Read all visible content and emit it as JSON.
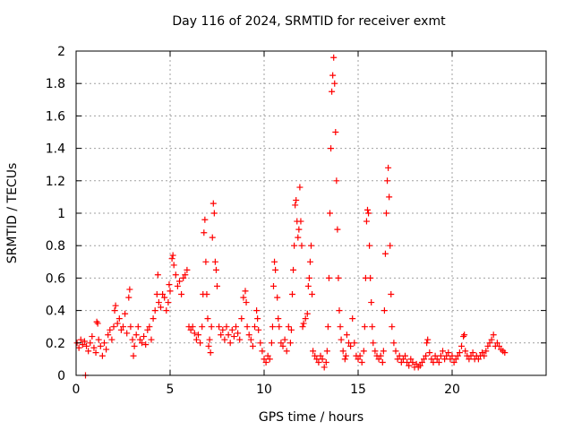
{
  "chart_data": {
    "type": "scatter",
    "title": "Day 116 of 2024, SRMTID for receiver exmt",
    "xlabel": "GPS time / hours",
    "ylabel": "SRMTID / TECUs",
    "xlim": [
      0,
      25
    ],
    "ylim": [
      0,
      2
    ],
    "xticks": [
      "0",
      "5",
      "10",
      "15",
      "20"
    ],
    "xtick_values": [
      0,
      5,
      10,
      15,
      20
    ],
    "yticks": [
      "0",
      "0.2",
      "0.4",
      "0.6",
      "0.8",
      "1",
      "1.2",
      "1.4",
      "1.6",
      "1.8",
      "2"
    ],
    "ytick_values": [
      0,
      0.2,
      0.4,
      0.6,
      0.8,
      1.0,
      1.2,
      1.4,
      1.6,
      1.8,
      2.0
    ],
    "grid": true,
    "marker": "plus",
    "marker_color": "#ff0000",
    "series": [
      {
        "name": "SRMTID",
        "points": [
          [
            0.05,
            0.2
          ],
          [
            0.15,
            0.17
          ],
          [
            0.25,
            0.22
          ],
          [
            0.35,
            0.19
          ],
          [
            0.45,
            0.21
          ],
          [
            0.55,
            0.18
          ],
          [
            0.5,
            0.0
          ],
          [
            0.65,
            0.15
          ],
          [
            0.75,
            0.2
          ],
          [
            0.85,
            0.24
          ],
          [
            0.95,
            0.17
          ],
          [
            1.05,
            0.14
          ],
          [
            1.1,
            0.33
          ],
          [
            1.15,
            0.32
          ],
          [
            1.2,
            0.22
          ],
          [
            1.3,
            0.18
          ],
          [
            1.4,
            0.12
          ],
          [
            1.5,
            0.2
          ],
          [
            1.6,
            0.16
          ],
          [
            1.7,
            0.25
          ],
          [
            1.8,
            0.28
          ],
          [
            1.9,
            0.22
          ],
          [
            2.0,
            0.3
          ],
          [
            2.05,
            0.4
          ],
          [
            2.1,
            0.43
          ],
          [
            2.2,
            0.32
          ],
          [
            2.3,
            0.35
          ],
          [
            2.4,
            0.28
          ],
          [
            2.5,
            0.3
          ],
          [
            2.6,
            0.38
          ],
          [
            2.7,
            0.26
          ],
          [
            2.8,
            0.48
          ],
          [
            2.85,
            0.53
          ],
          [
            2.9,
            0.3
          ],
          [
            3.0,
            0.22
          ],
          [
            3.05,
            0.12
          ],
          [
            3.1,
            0.18
          ],
          [
            3.2,
            0.25
          ],
          [
            3.3,
            0.3
          ],
          [
            3.4,
            0.22
          ],
          [
            3.5,
            0.2
          ],
          [
            3.6,
            0.24
          ],
          [
            3.7,
            0.19
          ],
          [
            3.8,
            0.28
          ],
          [
            3.9,
            0.3
          ],
          [
            4.0,
            0.22
          ],
          [
            4.1,
            0.35
          ],
          [
            4.2,
            0.4
          ],
          [
            4.3,
            0.5
          ],
          [
            4.35,
            0.62
          ],
          [
            4.4,
            0.45
          ],
          [
            4.5,
            0.42
          ],
          [
            4.6,
            0.5
          ],
          [
            4.7,
            0.48
          ],
          [
            4.8,
            0.4
          ],
          [
            4.9,
            0.45
          ],
          [
            4.95,
            0.56
          ],
          [
            5.0,
            0.52
          ],
          [
            5.1,
            0.72
          ],
          [
            5.15,
            0.74
          ],
          [
            5.2,
            0.68
          ],
          [
            5.3,
            0.62
          ],
          [
            5.4,
            0.55
          ],
          [
            5.5,
            0.58
          ],
          [
            5.6,
            0.5
          ],
          [
            5.7,
            0.6
          ],
          [
            5.8,
            0.62
          ],
          [
            5.9,
            0.65
          ],
          [
            6.0,
            0.3
          ],
          [
            6.1,
            0.28
          ],
          [
            6.2,
            0.3
          ],
          [
            6.3,
            0.26
          ],
          [
            6.4,
            0.22
          ],
          [
            6.5,
            0.25
          ],
          [
            6.6,
            0.2
          ],
          [
            6.7,
            0.3
          ],
          [
            6.75,
            0.5
          ],
          [
            6.8,
            0.88
          ],
          [
            6.85,
            0.96
          ],
          [
            6.9,
            0.7
          ],
          [
            6.95,
            0.5
          ],
          [
            7.0,
            0.35
          ],
          [
            7.05,
            0.18
          ],
          [
            7.1,
            0.22
          ],
          [
            7.15,
            0.14
          ],
          [
            7.2,
            0.3
          ],
          [
            7.25,
            0.85
          ],
          [
            7.3,
            1.06
          ],
          [
            7.35,
            1.0
          ],
          [
            7.4,
            0.7
          ],
          [
            7.45,
            0.65
          ],
          [
            7.5,
            0.55
          ],
          [
            7.6,
            0.3
          ],
          [
            7.7,
            0.25
          ],
          [
            7.8,
            0.28
          ],
          [
            7.9,
            0.22
          ],
          [
            8.0,
            0.3
          ],
          [
            8.1,
            0.25
          ],
          [
            8.2,
            0.2
          ],
          [
            8.3,
            0.28
          ],
          [
            8.4,
            0.24
          ],
          [
            8.5,
            0.3
          ],
          [
            8.6,
            0.26
          ],
          [
            8.7,
            0.22
          ],
          [
            8.8,
            0.35
          ],
          [
            8.9,
            0.48
          ],
          [
            9.0,
            0.52
          ],
          [
            9.05,
            0.45
          ],
          [
            9.1,
            0.3
          ],
          [
            9.2,
            0.25
          ],
          [
            9.3,
            0.22
          ],
          [
            9.4,
            0.18
          ],
          [
            9.5,
            0.3
          ],
          [
            9.6,
            0.4
          ],
          [
            9.65,
            0.35
          ],
          [
            9.7,
            0.28
          ],
          [
            9.8,
            0.2
          ],
          [
            9.9,
            0.15
          ],
          [
            10.0,
            0.1
          ],
          [
            10.1,
            0.08
          ],
          [
            10.2,
            0.12
          ],
          [
            10.3,
            0.1
          ],
          [
            10.4,
            0.2
          ],
          [
            10.45,
            0.3
          ],
          [
            10.5,
            0.55
          ],
          [
            10.55,
            0.7
          ],
          [
            10.6,
            0.65
          ],
          [
            10.7,
            0.48
          ],
          [
            10.75,
            0.35
          ],
          [
            10.8,
            0.3
          ],
          [
            10.9,
            0.2
          ],
          [
            11.0,
            0.18
          ],
          [
            11.1,
            0.22
          ],
          [
            11.2,
            0.15
          ],
          [
            11.3,
            0.3
          ],
          [
            11.4,
            0.2
          ],
          [
            11.45,
            0.28
          ],
          [
            11.5,
            0.5
          ],
          [
            11.55,
            0.65
          ],
          [
            11.6,
            0.8
          ],
          [
            11.65,
            1.05
          ],
          [
            11.7,
            1.08
          ],
          [
            11.75,
            0.95
          ],
          [
            11.8,
            0.85
          ],
          [
            11.85,
            0.9
          ],
          [
            11.9,
            1.16
          ],
          [
            11.95,
            0.95
          ],
          [
            12.0,
            0.8
          ],
          [
            12.05,
            0.3
          ],
          [
            12.1,
            0.32
          ],
          [
            12.2,
            0.35
          ],
          [
            12.3,
            0.38
          ],
          [
            12.35,
            0.55
          ],
          [
            12.4,
            0.6
          ],
          [
            12.45,
            0.7
          ],
          [
            12.5,
            0.8
          ],
          [
            12.55,
            0.5
          ],
          [
            12.6,
            0.15
          ],
          [
            12.7,
            0.12
          ],
          [
            12.8,
            0.1
          ],
          [
            12.9,
            0.08
          ],
          [
            13.0,
            0.12
          ],
          [
            13.1,
            0.1
          ],
          [
            13.2,
            0.05
          ],
          [
            13.3,
            0.08
          ],
          [
            13.35,
            0.15
          ],
          [
            13.4,
            0.3
          ],
          [
            13.45,
            0.6
          ],
          [
            13.5,
            1.0
          ],
          [
            13.55,
            1.4
          ],
          [
            13.6,
            1.75
          ],
          [
            13.65,
            1.85
          ],
          [
            13.7,
            1.96
          ],
          [
            13.75,
            1.8
          ],
          [
            13.8,
            1.5
          ],
          [
            13.85,
            1.2
          ],
          [
            13.9,
            0.9
          ],
          [
            13.95,
            0.6
          ],
          [
            14.0,
            0.4
          ],
          [
            14.05,
            0.3
          ],
          [
            14.1,
            0.22
          ],
          [
            14.2,
            0.15
          ],
          [
            14.3,
            0.1
          ],
          [
            14.35,
            0.12
          ],
          [
            14.4,
            0.25
          ],
          [
            14.5,
            0.2
          ],
          [
            14.6,
            0.18
          ],
          [
            14.7,
            0.35
          ],
          [
            14.8,
            0.2
          ],
          [
            14.9,
            0.12
          ],
          [
            15.0,
            0.1
          ],
          [
            15.1,
            0.12
          ],
          [
            15.2,
            0.08
          ],
          [
            15.3,
            0.15
          ],
          [
            15.35,
            0.3
          ],
          [
            15.4,
            0.6
          ],
          [
            15.45,
            0.95
          ],
          [
            15.5,
            1.02
          ],
          [
            15.55,
            1.0
          ],
          [
            15.6,
            0.8
          ],
          [
            15.65,
            0.6
          ],
          [
            15.7,
            0.45
          ],
          [
            15.75,
            0.3
          ],
          [
            15.8,
            0.2
          ],
          [
            15.9,
            0.15
          ],
          [
            16.0,
            0.12
          ],
          [
            16.1,
            0.1
          ],
          [
            16.2,
            0.12
          ],
          [
            16.3,
            0.08
          ],
          [
            16.35,
            0.15
          ],
          [
            16.4,
            0.4
          ],
          [
            16.45,
            0.75
          ],
          [
            16.5,
            1.0
          ],
          [
            16.55,
            1.2
          ],
          [
            16.6,
            1.28
          ],
          [
            16.65,
            1.1
          ],
          [
            16.7,
            0.8
          ],
          [
            16.75,
            0.5
          ],
          [
            16.8,
            0.3
          ],
          [
            16.9,
            0.2
          ],
          [
            17.0,
            0.15
          ],
          [
            17.1,
            0.1
          ],
          [
            17.2,
            0.12
          ],
          [
            17.3,
            0.08
          ],
          [
            17.4,
            0.1
          ],
          [
            17.5,
            0.12
          ],
          [
            17.6,
            0.08
          ],
          [
            17.7,
            0.06
          ],
          [
            17.8,
            0.1
          ],
          [
            17.9,
            0.08
          ],
          [
            18.0,
            0.05
          ],
          [
            18.1,
            0.07
          ],
          [
            18.2,
            0.05
          ],
          [
            18.3,
            0.06
          ],
          [
            18.4,
            0.08
          ],
          [
            18.5,
            0.1
          ],
          [
            18.6,
            0.12
          ],
          [
            18.65,
            0.2
          ],
          [
            18.7,
            0.22
          ],
          [
            18.8,
            0.14
          ],
          [
            18.9,
            0.1
          ],
          [
            19.0,
            0.08
          ],
          [
            19.1,
            0.12
          ],
          [
            19.2,
            0.1
          ],
          [
            19.3,
            0.08
          ],
          [
            19.4,
            0.12
          ],
          [
            19.5,
            0.15
          ],
          [
            19.6,
            0.1
          ],
          [
            19.7,
            0.12
          ],
          [
            19.8,
            0.14
          ],
          [
            19.9,
            0.1
          ],
          [
            20.0,
            0.12
          ],
          [
            20.1,
            0.08
          ],
          [
            20.2,
            0.1
          ],
          [
            20.3,
            0.12
          ],
          [
            20.4,
            0.14
          ],
          [
            20.5,
            0.18
          ],
          [
            20.6,
            0.24
          ],
          [
            20.65,
            0.25
          ],
          [
            20.7,
            0.15
          ],
          [
            20.8,
            0.12
          ],
          [
            20.9,
            0.1
          ],
          [
            21.0,
            0.12
          ],
          [
            21.1,
            0.14
          ],
          [
            21.2,
            0.1
          ],
          [
            21.3,
            0.12
          ],
          [
            21.4,
            0.1
          ],
          [
            21.5,
            0.12
          ],
          [
            21.6,
            0.14
          ],
          [
            21.7,
            0.12
          ],
          [
            21.8,
            0.15
          ],
          [
            21.9,
            0.18
          ],
          [
            22.0,
            0.2
          ],
          [
            22.1,
            0.22
          ],
          [
            22.2,
            0.25
          ],
          [
            22.3,
            0.18
          ],
          [
            22.4,
            0.2
          ],
          [
            22.5,
            0.18
          ],
          [
            22.6,
            0.16
          ],
          [
            22.7,
            0.15
          ],
          [
            22.8,
            0.14
          ]
        ]
      }
    ]
  }
}
